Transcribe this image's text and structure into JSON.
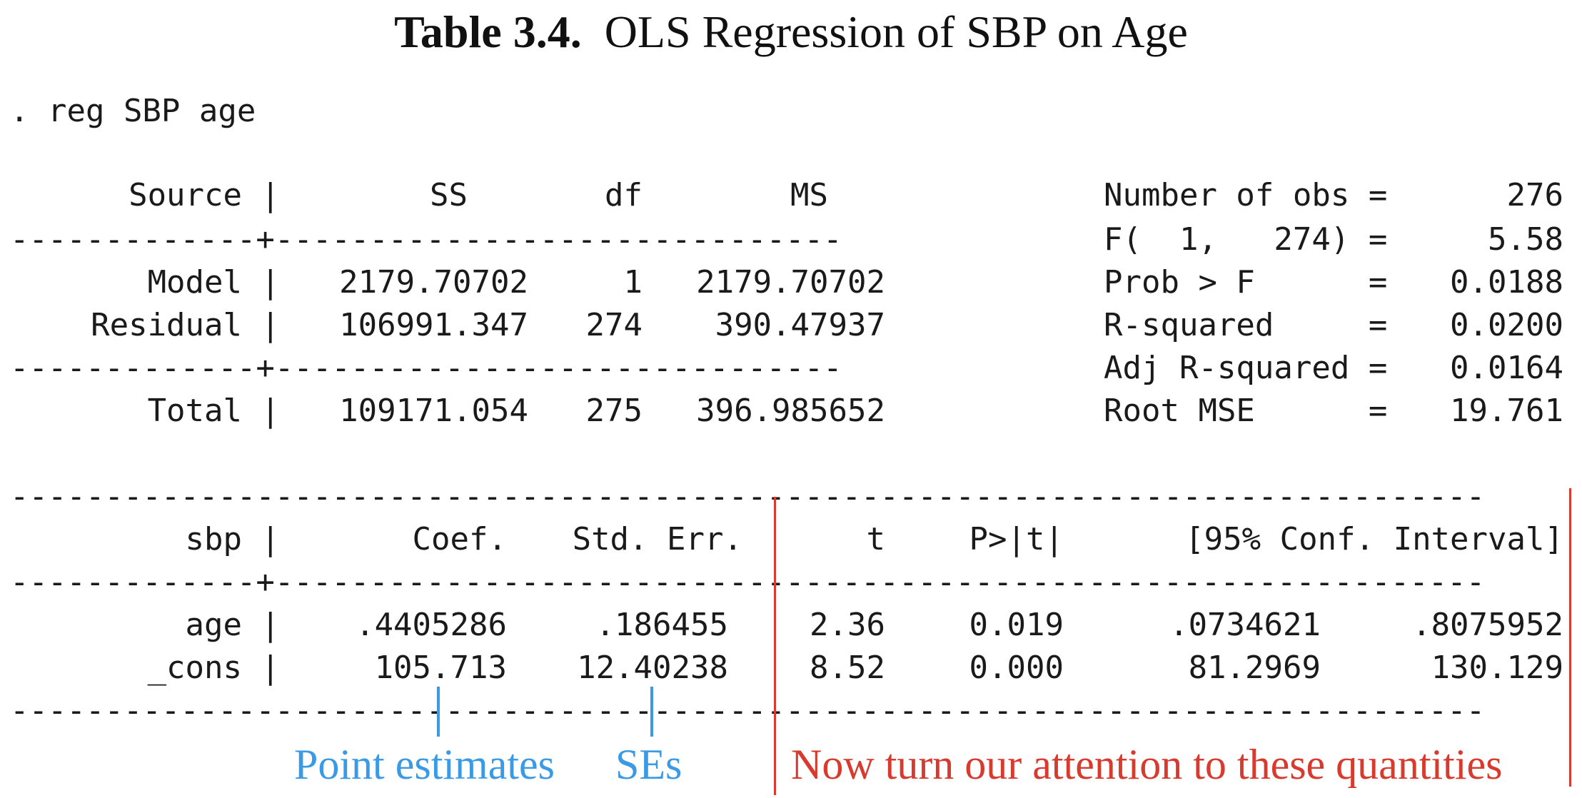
{
  "title": {
    "label": "Table 3.4.",
    "text": "OLS Regression of SBP on Age"
  },
  "command": ". reg SBP age",
  "anova": {
    "headers": {
      "source": "Source |",
      "ss": "SS",
      "df": "df",
      "ms": "MS"
    },
    "separator": "-------------+------------------------------",
    "rows": [
      {
        "source": "Model |",
        "ss": "2179.70702",
        "df": "1",
        "ms": "2179.70702"
      },
      {
        "source": "Residual |",
        "ss": "106991.347",
        "df": "274",
        "ms": "390.47937"
      },
      {
        "source": "Total |",
        "ss": "109171.054",
        "df": "275",
        "ms": "396.985652"
      }
    ]
  },
  "stats": [
    {
      "label": "Number of obs =",
      "value": "276"
    },
    {
      "label": "F(  1,   274) =",
      "value": "5.58"
    },
    {
      "label": "Prob > F      =",
      "value": "0.0188"
    },
    {
      "label": "R-squared     =",
      "value": "0.0200"
    },
    {
      "label": "Adj R-squared =",
      "value": "0.0164"
    },
    {
      "label": "Root MSE      =",
      "value": "19.761"
    }
  ],
  "coef": {
    "rule": "------------------------------------------------------------------------------",
    "header_sep": "-------------+----------------------------------------------------------------",
    "headers": {
      "var": "sbp |",
      "coef": "Coef.",
      "se": "Std. Err.",
      "t": "t",
      "p": "P>|t|",
      "ci": "[95% Conf. Interval]"
    },
    "rows": [
      {
        "var": "age |",
        "coef": ".4405286",
        "se": ".186455",
        "t": "2.36",
        "p": "0.019",
        "lo": ".0734621",
        "hi": ".8075952"
      },
      {
        "var": "_cons |",
        "coef": "105.713",
        "se": "12.40238",
        "t": "8.52",
        "p": "0.000",
        "lo": "81.2969",
        "hi": "130.129"
      }
    ]
  },
  "annotations": {
    "point_estimates": "Point estimates",
    "ses": "SEs",
    "attention": "Now turn our attention to these quantities"
  },
  "colors": {
    "blue": "#3b9ae6",
    "red": "#d83a2e"
  }
}
